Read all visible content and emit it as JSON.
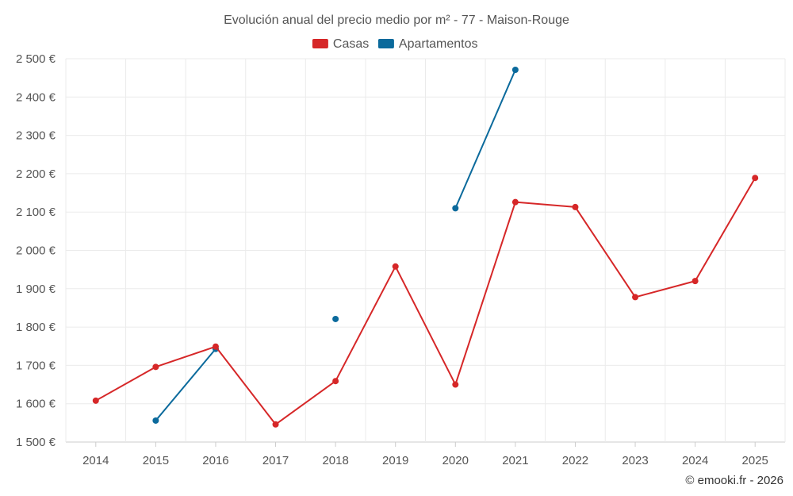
{
  "chart_data": {
    "type": "line",
    "title": "Evolución anual del precio medio por m² - 77 - Maison-Rouge",
    "categories": [
      "2014",
      "2015",
      "2016",
      "2017",
      "2018",
      "2019",
      "2020",
      "2021",
      "2022",
      "2023",
      "2024",
      "2025"
    ],
    "ylim": [
      1500,
      2500
    ],
    "yticks": [
      1500,
      1600,
      1700,
      1800,
      1900,
      2000,
      2100,
      2200,
      2300,
      2400,
      2500
    ],
    "ytick_labels": [
      "1 500 €",
      "1 600 €",
      "1 700 €",
      "1 800 €",
      "1 900 €",
      "2 000 €",
      "2 100 €",
      "2 200 €",
      "2 300 €",
      "2 400 €",
      "2 500 €"
    ],
    "grid": true,
    "legend_position": "top-center",
    "series": [
      {
        "name": "Casas",
        "color": "#d62728",
        "values": [
          1608,
          1696,
          1749,
          1546,
          1659,
          1958,
          1650,
          2126,
          2113,
          1878,
          1920,
          2189
        ]
      },
      {
        "name": "Apartamentos",
        "color": "#0b6a9c",
        "values": [
          null,
          1556,
          1743,
          null,
          1821,
          null,
          2110,
          2471,
          null,
          null,
          null,
          null
        ]
      }
    ]
  },
  "credit": "© emooki.fr - 2026"
}
